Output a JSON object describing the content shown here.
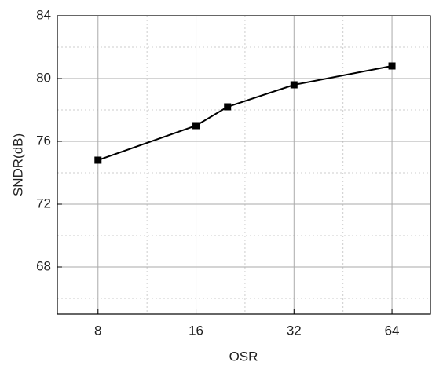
{
  "chart_data": {
    "type": "line",
    "x_label": "OSR",
    "y_label": "SNDR(dB)",
    "x": [
      8,
      16,
      20,
      32,
      64
    ],
    "series": [
      {
        "color": "#000000",
        "values": [
          74.8,
          77.0,
          78.2,
          79.6,
          80.8
        ]
      }
    ],
    "xlim": [
      6,
      84
    ],
    "xticks": [
      8,
      16,
      32,
      64
    ],
    "xlog": true,
    "ylim": [
      65,
      84
    ],
    "yticks": [
      68,
      72,
      76,
      80,
      84
    ],
    "grid": true,
    "marker": "square"
  }
}
